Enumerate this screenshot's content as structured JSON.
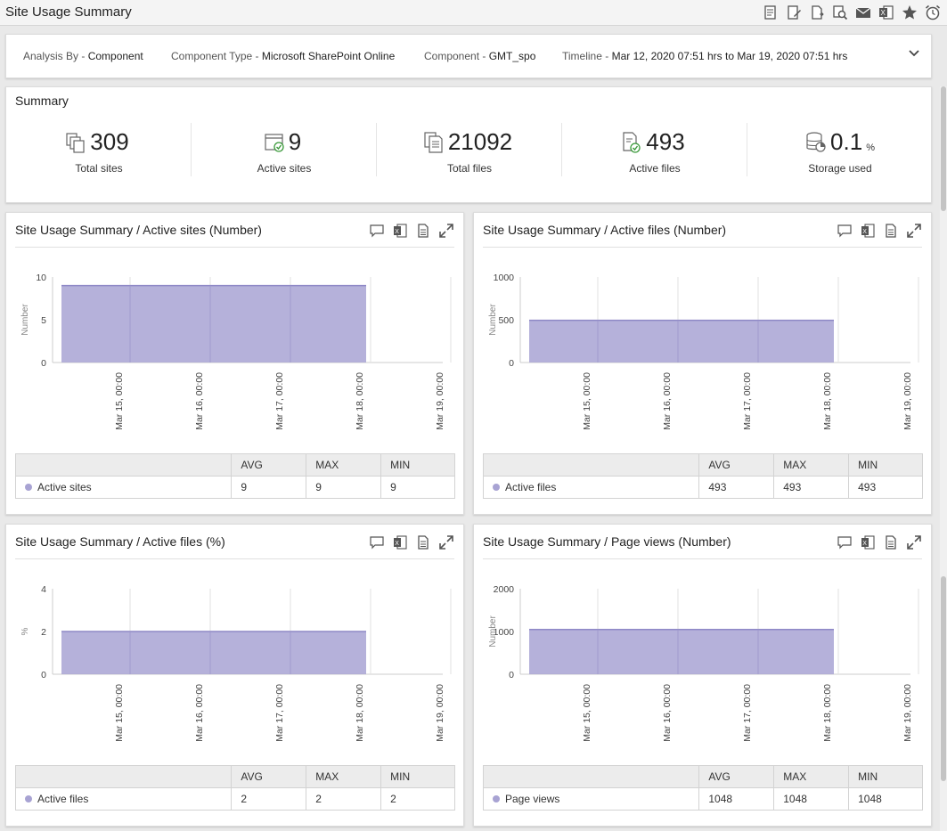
{
  "page": {
    "title": "Site Usage Summary"
  },
  "toolbar_icons": [
    "report-icon",
    "edit-report-icon",
    "export-pdf-icon",
    "search-report-icon",
    "email-icon",
    "excel-icon",
    "favorite-star-icon",
    "alarm-clock-icon"
  ],
  "filters": {
    "analysis_label": "Analysis By - ",
    "analysis_value": "Component",
    "type_label": "Component Type - ",
    "type_value": "Microsoft SharePoint Online",
    "component_label": "Component - ",
    "component_value": "GMT_spo",
    "timeline_label": "Timeline - ",
    "timeline_value": "Mar 12, 2020 07:51 hrs to Mar 19, 2020 07:51 hrs"
  },
  "summary": {
    "title": "Summary",
    "stats": [
      {
        "value": "309",
        "unit": "",
        "label": "Total sites",
        "icon": "sites-icon"
      },
      {
        "value": "9",
        "unit": "",
        "label": "Active sites",
        "icon": "active-site-icon"
      },
      {
        "value": "21092",
        "unit": "",
        "label": "Total files",
        "icon": "files-icon"
      },
      {
        "value": "493",
        "unit": "",
        "label": "Active files",
        "icon": "active-file-icon"
      },
      {
        "value": "0.1",
        "unit": "%",
        "label": "Storage used",
        "icon": "storage-icon"
      }
    ]
  },
  "table_headers": {
    "avg": "AVG",
    "max": "MAX",
    "min": "MIN"
  },
  "accent_color": "#a8a3d3",
  "charts": [
    {
      "title": "Site Usage Summary / Active sites (Number)",
      "ylabel": "Number",
      "series_name": "Active sites",
      "avg": "9",
      "max": "9",
      "min": "9"
    },
    {
      "title": "Site Usage Summary / Active files (Number)",
      "ylabel": "Number",
      "series_name": "Active files",
      "avg": "493",
      "max": "493",
      "min": "493"
    },
    {
      "title": "Site Usage Summary / Active files (%)",
      "ylabel": "%",
      "series_name": "Active files",
      "avg": "2",
      "max": "2",
      "min": "2"
    },
    {
      "title": "Site Usage Summary / Page views (Number)",
      "ylabel": "Number",
      "series_name": "Page views",
      "avg": "1048",
      "max": "1048",
      "min": "1048"
    }
  ],
  "chart_data": [
    {
      "type": "area",
      "x_ticks": [
        "Mar 15, 00:00",
        "Mar 16, 00:00",
        "Mar 17, 00:00",
        "Mar 18, 00:00",
        "Mar 19, 00:00"
      ],
      "y_ticks": [
        0,
        5,
        10
      ],
      "ylim": [
        0,
        10
      ],
      "ylabel": "Number",
      "series": [
        {
          "name": "Active sites",
          "x_range": [
            "Mar 14, 07:51",
            "Mar 18, 00:00"
          ],
          "value": 9
        }
      ]
    },
    {
      "type": "area",
      "x_ticks": [
        "Mar 15, 00:00",
        "Mar 16, 00:00",
        "Mar 17, 00:00",
        "Mar 18, 00:00",
        "Mar 19, 00:00"
      ],
      "y_ticks": [
        0,
        500,
        1000
      ],
      "ylim": [
        0,
        1000
      ],
      "ylabel": "Number",
      "series": [
        {
          "name": "Active files",
          "x_range": [
            "Mar 14, 07:51",
            "Mar 18, 00:00"
          ],
          "value": 493
        }
      ]
    },
    {
      "type": "area",
      "x_ticks": [
        "Mar 15, 00:00",
        "Mar 16, 00:00",
        "Mar 17, 00:00",
        "Mar 18, 00:00",
        "Mar 19, 00:00"
      ],
      "y_ticks": [
        0,
        2,
        4
      ],
      "ylim": [
        0,
        4
      ],
      "ylabel": "%",
      "series": [
        {
          "name": "Active files",
          "x_range": [
            "Mar 14, 07:51",
            "Mar 18, 00:00"
          ],
          "value": 2
        }
      ]
    },
    {
      "type": "area",
      "x_ticks": [
        "Mar 15, 00:00",
        "Mar 16, 00:00",
        "Mar 17, 00:00",
        "Mar 18, 00:00",
        "Mar 19, 00:00"
      ],
      "y_ticks": [
        0,
        1000,
        2000
      ],
      "ylim": [
        0,
        2000
      ],
      "ylabel": "Number",
      "series": [
        {
          "name": "Page views",
          "x_range": [
            "Mar 14, 07:51",
            "Mar 18, 00:00"
          ],
          "value": 1048
        }
      ]
    }
  ]
}
